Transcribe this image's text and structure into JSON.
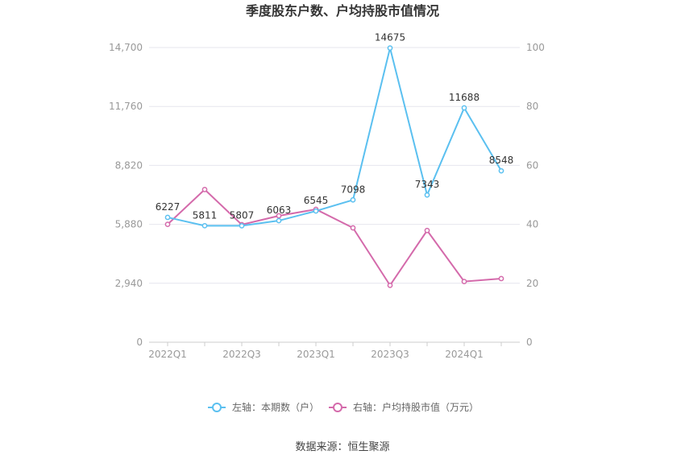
{
  "chart_data": {
    "type": "line",
    "title": "季度股东户数、户均持股市值情况",
    "categories": [
      "2022Q1",
      "2022Q2",
      "2022Q3",
      "2022Q4",
      "2023Q1",
      "2023Q2",
      "2023Q3",
      "2023Q4",
      "2024Q1",
      "2024Q2"
    ],
    "x_tick_labels": [
      "2022Q1",
      "2022Q3",
      "2023Q1",
      "2023Q3",
      "2024Q1"
    ],
    "left_axis": {
      "ylim": [
        0,
        14700
      ],
      "ticks": [
        "0",
        "2,940",
        "5,880",
        "8,820",
        "11,760",
        "14,700"
      ]
    },
    "right_axis": {
      "ylim": [
        0,
        100
      ],
      "ticks": [
        "0",
        "20",
        "40",
        "60",
        "80",
        "100"
      ]
    },
    "series": [
      {
        "name": "左轴：本期数（户）",
        "axis": "left",
        "color": "#5bc0f0",
        "values": [
          6227,
          5811,
          5807,
          6063,
          6545,
          7098,
          14675,
          7343,
          11688,
          8548
        ],
        "labels": [
          "6227",
          "5811",
          "5807",
          "6063",
          "6545",
          "7098",
          "14675",
          "7343",
          "11688",
          "8548"
        ]
      },
      {
        "name": "右轴：户均持股市值（万元）",
        "axis": "right",
        "color": "#d46aab",
        "values": [
          40.0,
          51.8,
          39.9,
          42.9,
          45.1,
          38.8,
          19.3,
          37.9,
          20.6,
          21.6
        ]
      }
    ],
    "grid": true,
    "legend": "bottom-center"
  },
  "source": "数据来源：恒生聚源"
}
